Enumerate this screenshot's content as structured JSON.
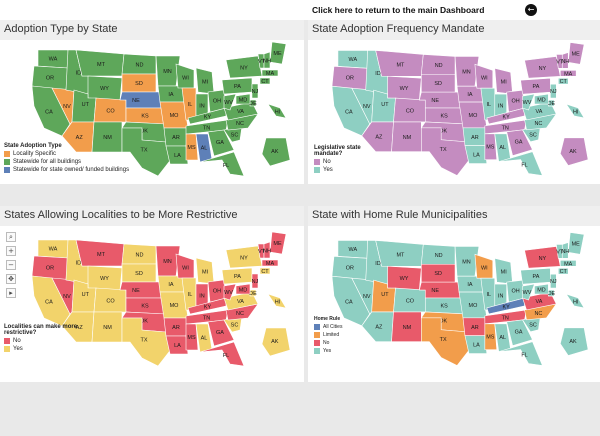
{
  "header": {
    "return_link": "Click here to return to the main Dashboard",
    "back_icon": "arrow-left-icon"
  },
  "panels": [
    {
      "title": "Adoption Type by State",
      "legend_title": "State Adoption Type",
      "legend": [
        {
          "label": "Locality Specific",
          "color": "#f29d4b"
        },
        {
          "label": "Statewide for all buildings",
          "color": "#5ea75a"
        },
        {
          "label": "Statewide for state owned/ funded buildings",
          "color": "#5e80b8"
        }
      ]
    },
    {
      "title": "State Adoption Frequency Mandate",
      "legend_title": "Legislative state mandate?",
      "legend": [
        {
          "label": "No",
          "color": "#c48cc0"
        },
        {
          "label": "Yes",
          "color": "#8ecfc2"
        }
      ]
    },
    {
      "title": "States Allowing Localities to be More Restrictive",
      "legend_title": "Localities can make more restrictive?",
      "legend": [
        {
          "label": "No",
          "color": "#e85a6a"
        },
        {
          "label": "Yes",
          "color": "#f2d36b"
        }
      ]
    },
    {
      "title": "State with Home Rule Municipalities",
      "legend_title": "Home Rule",
      "legend": [
        {
          "label": "All Cities",
          "color": "#5e80b8"
        },
        {
          "label": "Limited",
          "color": "#f29d4b"
        },
        {
          "label": "No",
          "color": "#e85a6a"
        },
        {
          "label": "Yes",
          "color": "#8ecfc2"
        }
      ]
    }
  ],
  "map_toolbar": [
    "search-icon",
    "zoom-in-icon",
    "zoom-out-icon",
    "pan-icon",
    "play-icon"
  ],
  "map_toolbar_glyphs": [
    "⌕",
    "+",
    "−",
    "✥",
    "▸"
  ],
  "state_labels": [
    "WA",
    "OR",
    "CA",
    "NV",
    "ID",
    "MT",
    "WY",
    "UT",
    "AZ",
    "CO",
    "NM",
    "ND",
    "SD",
    "NE",
    "KS",
    "OK",
    "TX",
    "MN",
    "IA",
    "MO",
    "AR",
    "LA",
    "WI",
    "IL",
    "MI",
    "IN",
    "OH",
    "KY",
    "TN",
    "MS",
    "AL",
    "GA",
    "FL",
    "SC",
    "NC",
    "VA",
    "WV",
    "PA",
    "NY",
    "ME",
    "VT",
    "NH",
    "MA",
    "CT",
    "NJ",
    "DE",
    "MD",
    "AK",
    "HI"
  ],
  "maps": {
    "adoption": {
      "WA": "#5ea75a",
      "OR": "#5ea75a",
      "CA": "#5ea75a",
      "NV": "#f29d4b",
      "ID": "#5ea75a",
      "MT": "#5ea75a",
      "WY": "#5ea75a",
      "UT": "#5ea75a",
      "AZ": "#f29d4b",
      "CO": "#f29d4b",
      "NM": "#5ea75a",
      "ND": "#5ea75a",
      "SD": "#f29d4b",
      "NE": "#5e80b8",
      "KS": "#f29d4b",
      "OK": "#5ea75a",
      "TX": "#5ea75a",
      "MN": "#5ea75a",
      "IA": "#5ea75a",
      "MO": "#f29d4b",
      "AR": "#5ea75a",
      "LA": "#5ea75a",
      "WI": "#5ea75a",
      "IL": "#f29d4b",
      "MI": "#5ea75a",
      "IN": "#5ea75a",
      "OH": "#5ea75a",
      "KY": "#5ea75a",
      "TN": "#5ea75a",
      "MS": "#f29d4b",
      "AL": "#5e80b8",
      "GA": "#5ea75a",
      "FL": "#5ea75a",
      "SC": "#5ea75a",
      "NC": "#5ea75a",
      "VA": "#5ea75a",
      "WV": "#5ea75a",
      "PA": "#5ea75a",
      "NY": "#5ea75a",
      "ME": "#5ea75a",
      "VT": "#5ea75a",
      "NH": "#5ea75a",
      "MA": "#5ea75a",
      "CT": "#5ea75a",
      "NJ": "#5ea75a",
      "DE": "#5ea75a",
      "MD": "#5ea75a",
      "AK": "#5ea75a",
      "HI": "#5ea75a"
    },
    "mandate": {
      "WA": "#8ecfc2",
      "OR": "#c48cc0",
      "CA": "#8ecfc2",
      "NV": "#8ecfc2",
      "ID": "#8ecfc2",
      "MT": "#c48cc0",
      "WY": "#c48cc0",
      "UT": "#8ecfc2",
      "AZ": "#c48cc0",
      "CO": "#c48cc0",
      "NM": "#c48cc0",
      "ND": "#c48cc0",
      "SD": "#c48cc0",
      "NE": "#c48cc0",
      "KS": "#c48cc0",
      "OK": "#c48cc0",
      "TX": "#c48cc0",
      "MN": "#c48cc0",
      "IA": "#c48cc0",
      "MO": "#c48cc0",
      "AR": "#8ecfc2",
      "LA": "#8ecfc2",
      "WI": "#c48cc0",
      "IL": "#8ecfc2",
      "MI": "#c48cc0",
      "IN": "#8ecfc2",
      "OH": "#c48cc0",
      "KY": "#c48cc0",
      "TN": "#c48cc0",
      "MS": "#c48cc0",
      "AL": "#8ecfc2",
      "GA": "#c48cc0",
      "FL": "#8ecfc2",
      "SC": "#8ecfc2",
      "NC": "#8ecfc2",
      "VA": "#8ecfc2",
      "WV": "#8ecfc2",
      "PA": "#c48cc0",
      "NY": "#c48cc0",
      "ME": "#c48cc0",
      "VT": "#c48cc0",
      "NH": "#c48cc0",
      "MA": "#c48cc0",
      "CT": "#8ecfc2",
      "NJ": "#8ecfc2",
      "DE": "#8ecfc2",
      "MD": "#8ecfc2",
      "AK": "#c48cc0",
      "HI": "#8ecfc2"
    },
    "restrictive": {
      "WA": "#f2d36b",
      "OR": "#e85a6a",
      "CA": "#f2d36b",
      "NV": "#e85a6a",
      "ID": "#f2d36b",
      "MT": "#e85a6a",
      "WY": "#f2d36b",
      "UT": "#f2d36b",
      "AZ": "#f2d36b",
      "CO": "#f2d36b",
      "NM": "#f2d36b",
      "ND": "#f2d36b",
      "SD": "#f2d36b",
      "NE": "#e85a6a",
      "KS": "#e85a6a",
      "OK": "#e85a6a",
      "TX": "#f2d36b",
      "MN": "#e85a6a",
      "IA": "#f2d36b",
      "MO": "#f2d36b",
      "AR": "#e85a6a",
      "LA": "#e85a6a",
      "WI": "#e85a6a",
      "IL": "#f2d36b",
      "MI": "#f2d36b",
      "IN": "#e85a6a",
      "OH": "#e85a6a",
      "KY": "#e85a6a",
      "TN": "#e85a6a",
      "MS": "#e85a6a",
      "AL": "#f2d36b",
      "GA": "#e85a6a",
      "FL": "#e85a6a",
      "SC": "#f2d36b",
      "NC": "#e85a6a",
      "VA": "#f2d36b",
      "WV": "#e85a6a",
      "PA": "#f2d36b",
      "NY": "#f2d36b",
      "ME": "#e85a6a",
      "VT": "#e85a6a",
      "NH": "#e85a6a",
      "MA": "#e85a6a",
      "CT": "#f2d36b",
      "NJ": "#e85a6a",
      "DE": "#f2d36b",
      "MD": "#e85a6a",
      "AK": "#f2d36b",
      "HI": "#f2d36b"
    },
    "homerule": {
      "WA": "#8ecfc2",
      "OR": "#8ecfc2",
      "CA": "#8ecfc2",
      "NV": "#8ecfc2",
      "ID": "#8ecfc2",
      "MT": "#8ecfc2",
      "WY": "#e85a6a",
      "UT": "#f29d4b",
      "AZ": "#8ecfc2",
      "CO": "#8ecfc2",
      "NM": "#e85a6a",
      "ND": "#8ecfc2",
      "SD": "#e85a6a",
      "NE": "#e85a6a",
      "KS": "#8ecfc2",
      "OK": "#f29d4b",
      "TX": "#f29d4b",
      "MN": "#8ecfc2",
      "IA": "#8ecfc2",
      "MO": "#8ecfc2",
      "AR": "#e85a6a",
      "LA": "#8ecfc2",
      "WI": "#f29d4b",
      "IL": "#8ecfc2",
      "MI": "#8ecfc2",
      "IN": "#8ecfc2",
      "OH": "#8ecfc2",
      "KY": "#5e80b8",
      "TN": "#e85a6a",
      "MS": "#f29d4b",
      "AL": "#8ecfc2",
      "GA": "#8ecfc2",
      "FL": "#8ecfc2",
      "SC": "#8ecfc2",
      "NC": "#f29d4b",
      "VA": "#e85a6a",
      "WV": "#8ecfc2",
      "PA": "#8ecfc2",
      "NY": "#e85a6a",
      "ME": "#8ecfc2",
      "VT": "#8ecfc2",
      "NH": "#8ecfc2",
      "MA": "#8ecfc2",
      "CT": "#8ecfc2",
      "NJ": "#8ecfc2",
      "DE": "#8ecfc2",
      "MD": "#8ecfc2",
      "AK": "#8ecfc2",
      "HI": "#8ecfc2"
    }
  },
  "map_keys": [
    "adoption",
    "mandate",
    "restrictive",
    "homerule"
  ]
}
